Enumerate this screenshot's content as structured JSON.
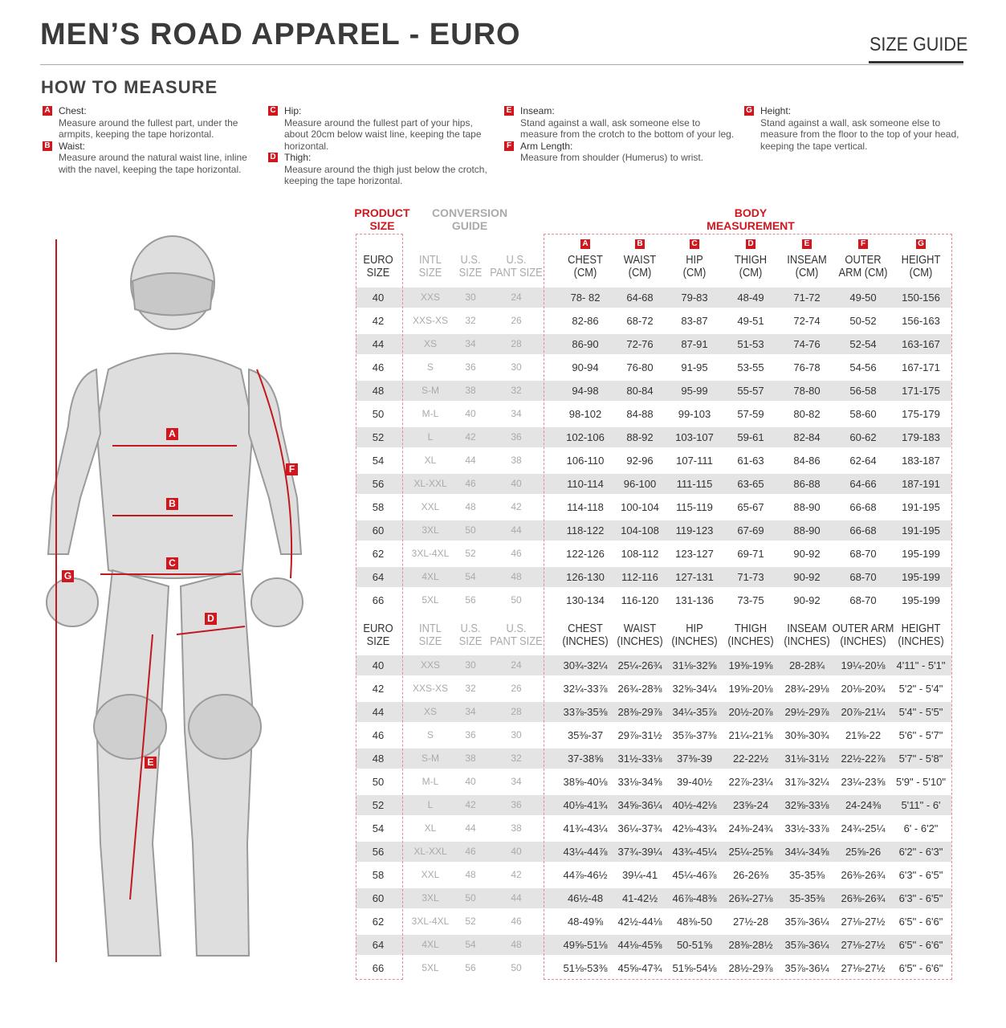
{
  "header": {
    "title": "MEN’S ROAD APPAREL - EURO",
    "size_guide": "SIZE GUIDE",
    "how_to_measure": "HOW TO MEASURE"
  },
  "instructions": [
    {
      "letter": "A",
      "label": "Chest:",
      "desc": "Measure around the fullest part, under the armpits, keeping the tape horizontal."
    },
    {
      "letter": "B",
      "label": "Waist:",
      "desc": "Measure around the natural waist line, inline with the navel, keeping the tape horizontal."
    },
    {
      "letter": "C",
      "label": "Hip:",
      "desc": "Measure around the fullest part of your hips, about 20cm below waist line, keeping the tape horizontal."
    },
    {
      "letter": "D",
      "label": "Thigh:",
      "desc": "Measure around the thigh just below the crotch, keeping the tape horizontal."
    },
    {
      "letter": "E",
      "label": "Inseam:",
      "desc": "Stand against a wall, ask someone else to measure from the crotch to the bottom of your leg."
    },
    {
      "letter": "F",
      "label": "Arm Length:",
      "desc": "Measure from shoulder (Humerus) to wrist."
    },
    {
      "letter": "G",
      "label": "Height:",
      "desc": "Stand against a wall, ask someone else to measure from the floor to the top of your head, keeping the tape vertical."
    }
  ],
  "figure_markers": [
    "A",
    "B",
    "C",
    "D",
    "E",
    "F",
    "G"
  ],
  "accent_color": "#d0171e",
  "table": {
    "product_size": "PRODUCT SIZE",
    "conversion_guide": "CONVERSION GUIDE",
    "body_measurement": "BODY MEASUREMENT",
    "cm_headers": [
      "EURO SIZE",
      "INTL SIZE",
      "U.S. SIZE",
      "U.S. PANT SIZE",
      "CHEST (CM)",
      "WAIST (CM)",
      "HIP (CM)",
      "THIGH (CM)",
      "INSEAM (CM)",
      "OUTER ARM (CM)",
      "HEIGHT (CM)"
    ],
    "in_headers": [
      "EURO SIZE",
      "INTL SIZE",
      "U.S. SIZE",
      "U.S. PANT SIZE",
      "CHEST (INCHES)",
      "WAIST (INCHES)",
      "HIP (INCHES)",
      "THIGH (INCHES)",
      "INSEAM (INCHES)",
      "OUTER ARM (INCHES)",
      "HEIGHT (INCHES)"
    ],
    "column_letters": [
      "A",
      "B",
      "C",
      "D",
      "E",
      "F",
      "G"
    ],
    "cm_rows": [
      [
        "40",
        "XXS",
        "30",
        "24",
        "78- 82",
        "64-68",
        "79-83",
        "48-49",
        "71-72",
        "49-50",
        "150-156"
      ],
      [
        "42",
        "XXS-XS",
        "32",
        "26",
        "82-86",
        "68-72",
        "83-87",
        "49-51",
        "72-74",
        "50-52",
        "156-163"
      ],
      [
        "44",
        "XS",
        "34",
        "28",
        "86-90",
        "72-76",
        "87-91",
        "51-53",
        "74-76",
        "52-54",
        "163-167"
      ],
      [
        "46",
        "S",
        "36",
        "30",
        "90-94",
        "76-80",
        "91-95",
        "53-55",
        "76-78",
        "54-56",
        "167-171"
      ],
      [
        "48",
        "S-M",
        "38",
        "32",
        "94-98",
        "80-84",
        "95-99",
        "55-57",
        "78-80",
        "56-58",
        "171-175"
      ],
      [
        "50",
        "M-L",
        "40",
        "34",
        "98-102",
        "84-88",
        "99-103",
        "57-59",
        "80-82",
        "58-60",
        "175-179"
      ],
      [
        "52",
        "L",
        "42",
        "36",
        "102-106",
        "88-92",
        "103-107",
        "59-61",
        "82-84",
        "60-62",
        "179-183"
      ],
      [
        "54",
        "XL",
        "44",
        "38",
        "106-110",
        "92-96",
        "107-111",
        "61-63",
        "84-86",
        "62-64",
        "183-187"
      ],
      [
        "56",
        "XL-XXL",
        "46",
        "40",
        "110-114",
        "96-100",
        "111-115",
        "63-65",
        "86-88",
        "64-66",
        "187-191"
      ],
      [
        "58",
        "XXL",
        "48",
        "42",
        "114-118",
        "100-104",
        "115-119",
        "65-67",
        "88-90",
        "66-68",
        "191-195"
      ],
      [
        "60",
        "3XL",
        "50",
        "44",
        "118-122",
        "104-108",
        "119-123",
        "67-69",
        "88-90",
        "66-68",
        "191-195"
      ],
      [
        "62",
        "3XL-4XL",
        "52",
        "46",
        "122-126",
        "108-112",
        "123-127",
        "69-71",
        "90-92",
        "68-70",
        "195-199"
      ],
      [
        "64",
        "4XL",
        "54",
        "48",
        "126-130",
        "112-116",
        "127-131",
        "71-73",
        "90-92",
        "68-70",
        "195-199"
      ],
      [
        "66",
        "5XL",
        "56",
        "50",
        "130-134",
        "116-120",
        "131-136",
        "73-75",
        "90-92",
        "68-70",
        "195-199"
      ]
    ],
    "in_rows": [
      [
        "40",
        "XXS",
        "30",
        "24",
        "30¾-32¼",
        "25¼-26¾",
        "31⅛-32⅝",
        "19⅜-19⅝",
        "28-28¾",
        "19¼-20⅛",
        "4'11\" - 5'1\""
      ],
      [
        "42",
        "XXS-XS",
        "32",
        "26",
        "32¼-33⅞",
        "26¾-28⅜",
        "32⅝-34¼",
        "19⅝-20⅛",
        "28¾-29⅛",
        "20⅛-20¾",
        "5'2\" - 5'4\""
      ],
      [
        "44",
        "XS",
        "34",
        "28",
        "33⅞-35⅜",
        "28⅜-29⅞",
        "34¼-35⅞",
        "20½-20⅞",
        "29½-29⅞",
        "20⅞-21¼",
        "5'4\" - 5'5\""
      ],
      [
        "46",
        "S",
        "36",
        "30",
        "35⅜-37",
        "29⅞-31½",
        "35⅞-37⅜",
        "21¼-21⅝",
        "30⅜-30¾",
        "21⅝-22",
        "5'6\" - 5'7\""
      ],
      [
        "48",
        "S-M",
        "38",
        "32",
        "37-38⅝",
        "31½-33⅛",
        "37⅜-39",
        "22-22½",
        "31⅛-31½",
        "22½-22⅞",
        "5'7\" - 5'8\""
      ],
      [
        "50",
        "M-L",
        "40",
        "34",
        "38⅝-40⅛",
        "33⅛-34⅝",
        "39-40½",
        "22⅞-23¼",
        "31⅞-32¼",
        "23¼-23⅝",
        "5'9\" - 5'10\""
      ],
      [
        "52",
        "L",
        "42",
        "36",
        "40⅛-41¾",
        "34⅝-36¼",
        "40½-42⅛",
        "23⅝-24",
        "32⅝-33⅛",
        "24-24⅜",
        "5'11\" - 6'"
      ],
      [
        "54",
        "XL",
        "44",
        "38",
        "41¾-43¼",
        "36¼-37¾",
        "42⅛-43¾",
        "24⅜-24¾",
        "33½-33⅞",
        "24¾-25¼",
        "6' - 6'2\""
      ],
      [
        "56",
        "XL-XXL",
        "46",
        "40",
        "43¼-44⅞",
        "37¾-39¼",
        "43¾-45¼",
        "25¼-25⅝",
        "34¼-34⅝",
        "25⅝-26",
        "6'2\" - 6'3\""
      ],
      [
        "58",
        "XXL",
        "48",
        "42",
        "44⅞-46½",
        "39¼-41",
        "45¼-46⅞",
        "26-26⅜",
        "35-35⅜",
        "26⅜-26¾",
        "6'3\" - 6'5\""
      ],
      [
        "60",
        "3XL",
        "50",
        "44",
        "46½-48",
        "41-42½",
        "46⅞-48⅜",
        "26¾-27⅛",
        "35-35⅜",
        "26⅜-26¾",
        "6'3\" - 6'5\""
      ],
      [
        "62",
        "3XL-4XL",
        "52",
        "46",
        "48-49⅝",
        "42½-44⅛",
        "48⅜-50",
        "27½-28",
        "35⅞-36¼",
        "27⅛-27½",
        "6'5\" - 6'6\""
      ],
      [
        "64",
        "4XL",
        "54",
        "48",
        "49⅝-51⅛",
        "44⅛-45⅝",
        "50-51⅝",
        "28⅜-28½",
        "35⅞-36¼",
        "27⅛-27½",
        "6'5\" - 6'6\""
      ],
      [
        "66",
        "5XL",
        "56",
        "50",
        "51⅛-53⅜",
        "45⅝-47¾",
        "51⅝-54⅛",
        "28½-29⅞",
        "35⅞-36¼",
        "27⅛-27½",
        "6'5\" - 6'6\""
      ]
    ]
  }
}
